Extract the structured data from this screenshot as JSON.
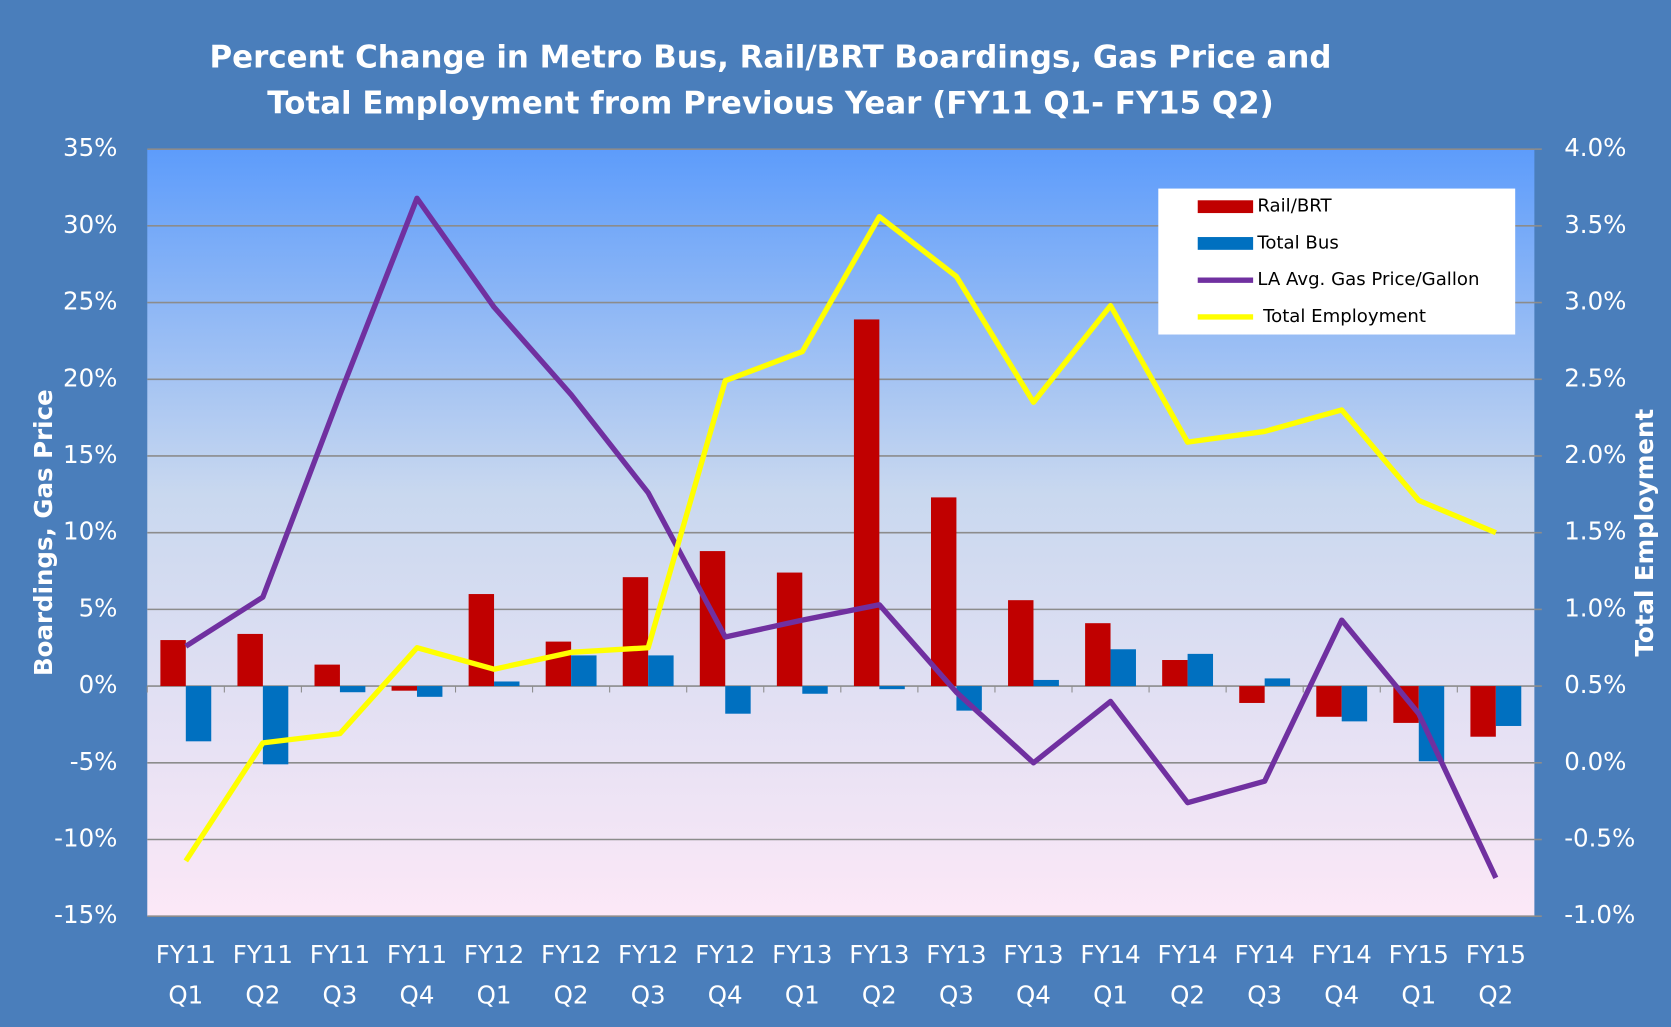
{
  "chart_data": {
    "type": "bar-line",
    "title": "Percent Change in Metro Bus, Rail/BRT Boardings, Gas Price and\nTotal Employment from Previous Year  (FY11 Q1- FY15 Q2)",
    "ylabel": "Boardings, Gas Price",
    "y2label": "Total  Employment",
    "categories": [
      "FY11\nQ1",
      "FY11\nQ2",
      "FY11\nQ3",
      "FY11\nQ4",
      "FY12\nQ1",
      "FY12\nQ2",
      "FY12\nQ3",
      "FY12\nQ4",
      "FY13\nQ1",
      "FY13\nQ2",
      "FY13\nQ3",
      "FY13\nQ4",
      "FY14\nQ1",
      "FY14\nQ2",
      "FY14\nQ3",
      "FY14\nQ4",
      "FY15\nQ1",
      "FY15\nQ2"
    ],
    "series": [
      {
        "name": "Rail/BRT",
        "type": "bar",
        "color": "#c00000",
        "values": [
          3.0,
          3.4,
          1.4,
          -0.3,
          6.0,
          2.9,
          7.1,
          8.8,
          7.4,
          23.9,
          12.3,
          5.6,
          4.1,
          1.7,
          -1.1,
          -2.0,
          -2.4,
          -3.3
        ]
      },
      {
        "name": "Total Bus",
        "type": "bar",
        "color": "#0070c0",
        "values": [
          -3.6,
          -5.1,
          -0.4,
          -0.7,
          0.3,
          2.0,
          2.0,
          -1.8,
          -0.5,
          -0.2,
          -1.6,
          0.4,
          2.4,
          2.1,
          0.5,
          -2.3,
          -4.9,
          -2.6
        ]
      },
      {
        "name": "LA Avg. Gas Price/Gallon",
        "type": "line",
        "color": "#7030a0",
        "values": [
          2.6,
          5.8,
          19.0,
          31.8,
          24.7,
          19.0,
          12.6,
          3.2,
          4.3,
          5.3,
          -0.4,
          -5.0,
          -1.0,
          -7.6,
          -6.2,
          4.3,
          -1.8,
          -12.5
        ]
      },
      {
        "name": " Total Employment",
        "type": "line",
        "axis": "y2",
        "color": "#ffff00",
        "values": [
          -0.64,
          0.13,
          0.19,
          0.75,
          0.61,
          0.72,
          0.75,
          2.49,
          2.68,
          3.56,
          3.17,
          2.35,
          2.98,
          2.09,
          2.16,
          2.3,
          1.71,
          1.5
        ]
      }
    ],
    "ylim": [
      -15,
      35
    ],
    "yticks": [
      {
        "value": -15,
        "label": "-15%"
      },
      {
        "value": -10,
        "label": "-10%"
      },
      {
        "value": -5,
        "label": "-5%"
      },
      {
        "value": 0,
        "label": "0%"
      },
      {
        "value": 5,
        "label": "5%"
      },
      {
        "value": 10,
        "label": "10%"
      },
      {
        "value": 15,
        "label": "15%"
      },
      {
        "value": 20,
        "label": "20%"
      },
      {
        "value": 25,
        "label": "25%"
      },
      {
        "value": 30,
        "label": "30%"
      },
      {
        "value": 35,
        "label": "35%"
      }
    ],
    "y2lim": [
      -1,
      4
    ],
    "y2ticks": [
      {
        "value": -1,
        "label": "-1.0%"
      },
      {
        "value": -0.5,
        "label": "-0.5%"
      },
      {
        "value": 0,
        "label": "0.0%"
      },
      {
        "value": 0.5,
        "label": "0.5%"
      },
      {
        "value": 1,
        "label": "1.0%"
      },
      {
        "value": 1.5,
        "label": "1.5%"
      },
      {
        "value": 2,
        "label": "2.0%"
      },
      {
        "value": 2.5,
        "label": "2.5%"
      },
      {
        "value": 3,
        "label": "3.0%"
      },
      {
        "value": 3.5,
        "label": "3.5%"
      },
      {
        "value": 4,
        "label": "4.0%"
      }
    ],
    "grid": true,
    "legend": "upper right"
  }
}
